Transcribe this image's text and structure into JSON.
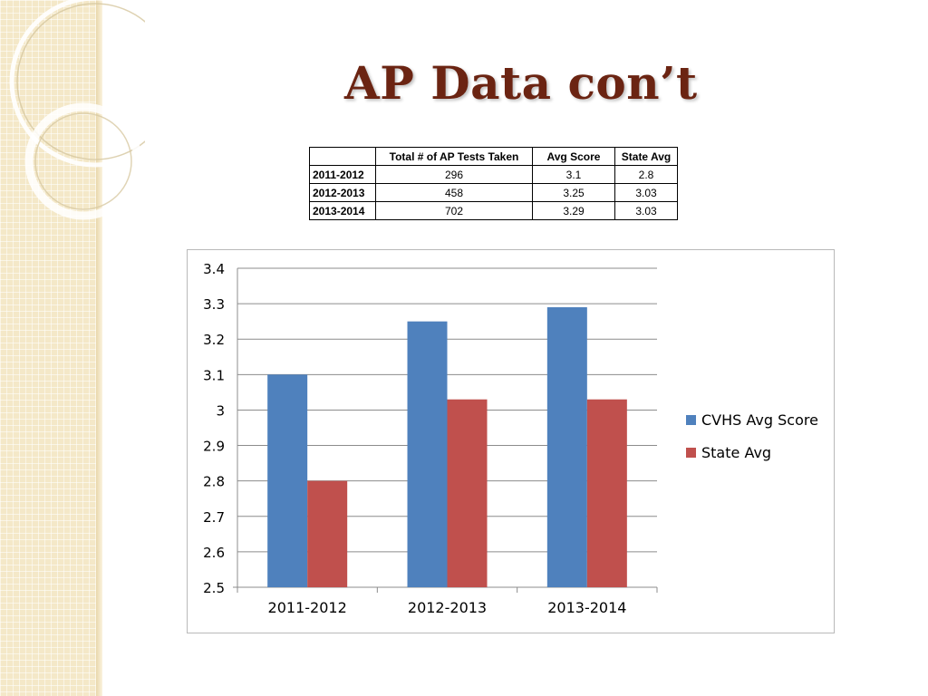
{
  "slide": {
    "title": "AP Data con’t"
  },
  "table": {
    "headers": [
      "",
      "Total # of AP Tests Taken",
      "Avg Score",
      "State Avg"
    ],
    "rows": [
      {
        "label": "2011-2012",
        "total": "296",
        "avg": "3.1",
        "state": "2.8"
      },
      {
        "label": "2012-2013",
        "total": "458",
        "avg": "3.25",
        "state": "3.03"
      },
      {
        "label": "2013-2014",
        "total": "702",
        "avg": "3.29",
        "state": "3.03"
      }
    ]
  },
  "chart_data": {
    "type": "bar",
    "title": "",
    "xlabel": "",
    "ylabel": "",
    "categories": [
      "2011-2012",
      "2012-2013",
      "2013-2014"
    ],
    "series": [
      {
        "name": "CVHS Avg Score",
        "values": [
          3.1,
          3.25,
          3.29
        ],
        "color": "#4f81bd"
      },
      {
        "name": "State Avg",
        "values": [
          2.8,
          3.03,
          3.03
        ],
        "color": "#c0504d"
      }
    ],
    "ylim": [
      2.5,
      3.4
    ],
    "yticks": [
      "2.5",
      "2.6",
      "2.7",
      "2.8",
      "2.9",
      "3",
      "3.1",
      "3.2",
      "3.3",
      "3.4"
    ],
    "grid": true,
    "legend": "right"
  }
}
